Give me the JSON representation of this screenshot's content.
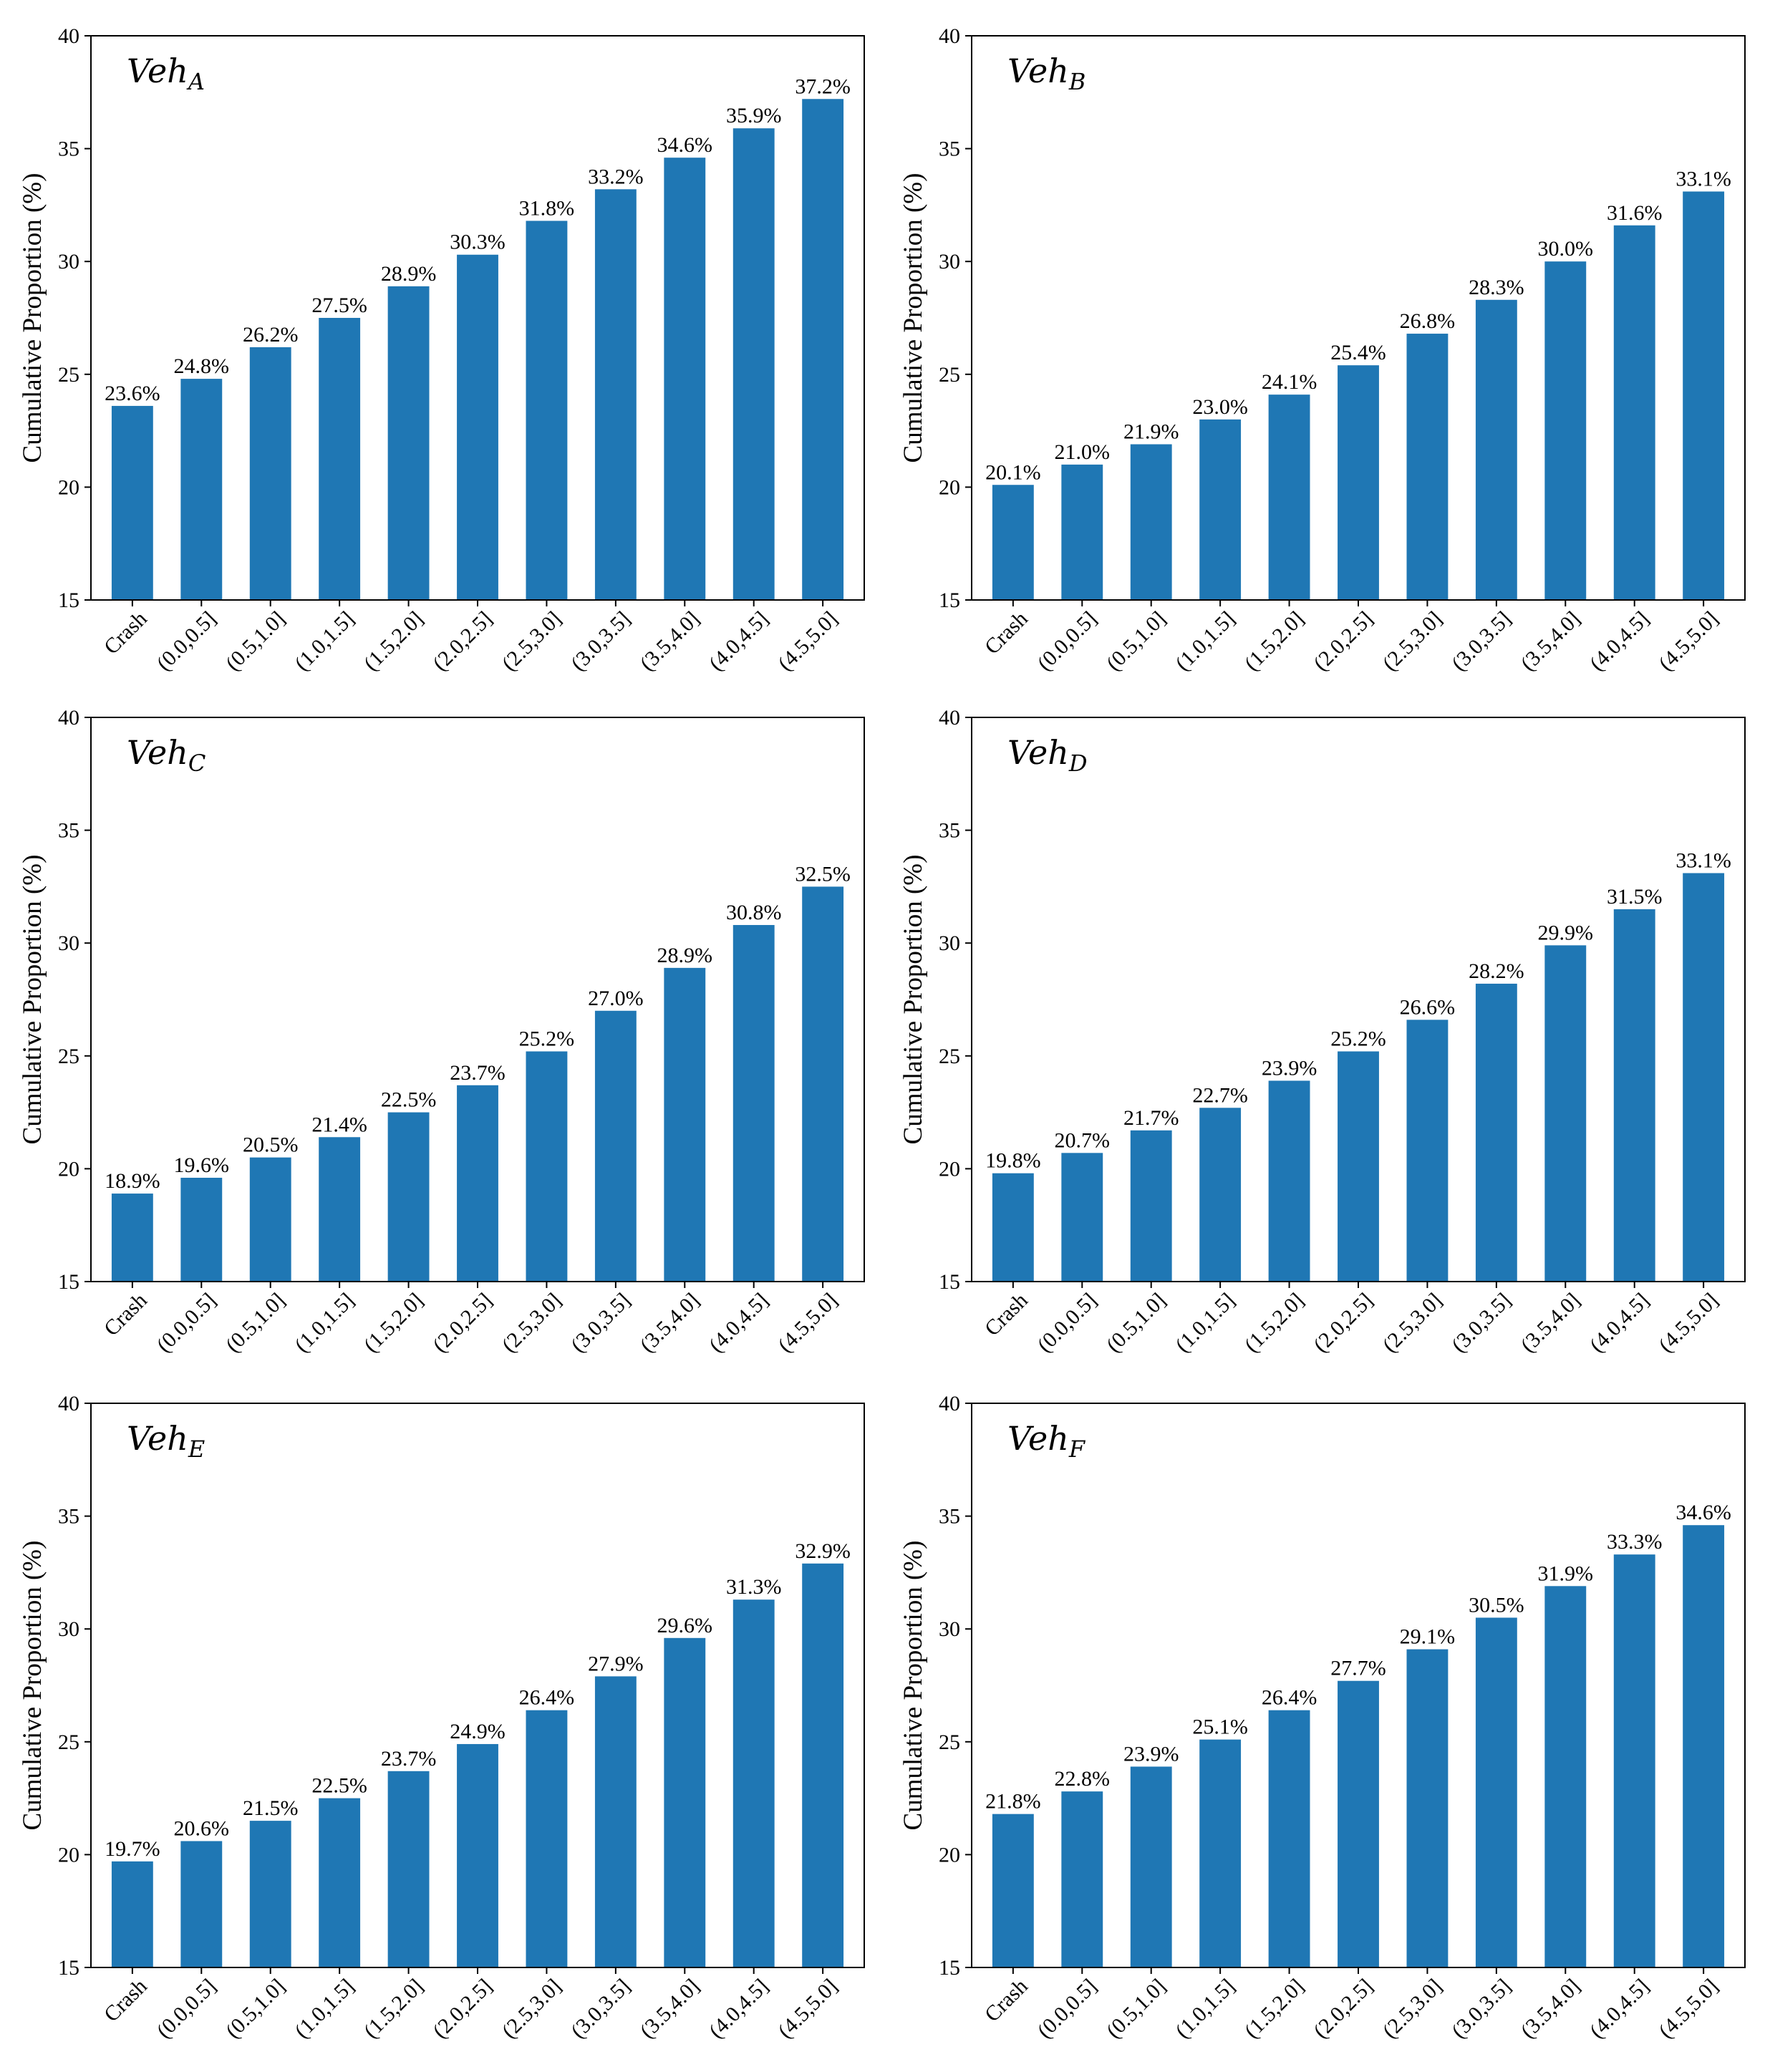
{
  "colors": {
    "bar": "#1f77b4",
    "axis": "#000000",
    "background": "#ffffff"
  },
  "chart_data": [
    {
      "type": "bar",
      "panel": "top-left",
      "title": "Veh",
      "title_sub": "A",
      "ylabel": "Cumulative Proportion (%)",
      "xlabel": "",
      "ylim": [
        15,
        40
      ],
      "yticks": [
        15,
        20,
        25,
        30,
        35,
        40
      ],
      "categories": [
        "Crash",
        "(0.0,0.5]",
        "(0.5,1.0]",
        "(1.0,1.5]",
        "(1.5,2.0]",
        "(2.0,2.5]",
        "(2.5,3.0]",
        "(3.0,3.5]",
        "(3.5,4.0]",
        "(4.0,4.5]",
        "(4.5,5.0]"
      ],
      "values": [
        23.6,
        24.8,
        26.2,
        27.5,
        28.9,
        30.3,
        31.8,
        33.2,
        34.6,
        35.9,
        37.2
      ],
      "data_labels": [
        "23.6%",
        "24.8%",
        "26.2%",
        "27.5%",
        "28.9%",
        "30.3%",
        "31.8%",
        "33.2%",
        "34.6%",
        "35.9%",
        "37.2%"
      ]
    },
    {
      "type": "bar",
      "panel": "top-right",
      "title": "Veh",
      "title_sub": "B",
      "ylabel": "Cumulative Proportion (%)",
      "xlabel": "",
      "ylim": [
        15,
        40
      ],
      "yticks": [
        15,
        20,
        25,
        30,
        35,
        40
      ],
      "categories": [
        "Crash",
        "(0.0,0.5]",
        "(0.5,1.0]",
        "(1.0,1.5]",
        "(1.5,2.0]",
        "(2.0,2.5]",
        "(2.5,3.0]",
        "(3.0,3.5]",
        "(3.5,4.0]",
        "(4.0,4.5]",
        "(4.5,5.0]"
      ],
      "values": [
        20.1,
        21.0,
        21.9,
        23.0,
        24.1,
        25.4,
        26.8,
        28.3,
        30.0,
        31.6,
        33.1
      ],
      "data_labels": [
        "20.1%",
        "21.0%",
        "21.9%",
        "23.0%",
        "24.1%",
        "25.4%",
        "26.8%",
        "28.3%",
        "30.0%",
        "31.6%",
        "33.1%"
      ]
    },
    {
      "type": "bar",
      "panel": "middle-left",
      "title": "Veh",
      "title_sub": "C",
      "ylabel": "Cumulative Proportion (%)",
      "xlabel": "",
      "ylim": [
        15,
        40
      ],
      "yticks": [
        15,
        20,
        25,
        30,
        35,
        40
      ],
      "categories": [
        "Crash",
        "(0.0,0.5]",
        "(0.5,1.0]",
        "(1.0,1.5]",
        "(1.5,2.0]",
        "(2.0,2.5]",
        "(2.5,3.0]",
        "(3.0,3.5]",
        "(3.5,4.0]",
        "(4.0,4.5]",
        "(4.5,5.0]"
      ],
      "values": [
        18.9,
        19.6,
        20.5,
        21.4,
        22.5,
        23.7,
        25.2,
        27.0,
        28.9,
        30.8,
        32.5
      ],
      "data_labels": [
        "18.9%",
        "19.6%",
        "20.5%",
        "21.4%",
        "22.5%",
        "23.7%",
        "25.2%",
        "27.0%",
        "28.9%",
        "30.8%",
        "32.5%"
      ]
    },
    {
      "type": "bar",
      "panel": "middle-right",
      "title": "Veh",
      "title_sub": "D",
      "ylabel": "Cumulative Proportion (%)",
      "xlabel": "",
      "ylim": [
        15,
        40
      ],
      "yticks": [
        15,
        20,
        25,
        30,
        35,
        40
      ],
      "categories": [
        "Crash",
        "(0.0,0.5]",
        "(0.5,1.0]",
        "(1.0,1.5]",
        "(1.5,2.0]",
        "(2.0,2.5]",
        "(2.5,3.0]",
        "(3.0,3.5]",
        "(3.5,4.0]",
        "(4.0,4.5]",
        "(4.5,5.0]"
      ],
      "values": [
        19.8,
        20.7,
        21.7,
        22.7,
        23.9,
        25.2,
        26.6,
        28.2,
        29.9,
        31.5,
        33.1
      ],
      "data_labels": [
        "19.8%",
        "20.7%",
        "21.7%",
        "22.7%",
        "23.9%",
        "25.2%",
        "26.6%",
        "28.2%",
        "29.9%",
        "31.5%",
        "33.1%"
      ]
    },
    {
      "type": "bar",
      "panel": "bottom-left",
      "title": "Veh",
      "title_sub": "E",
      "ylabel": "Cumulative Proportion (%)",
      "xlabel": "",
      "ylim": [
        15,
        40
      ],
      "yticks": [
        15,
        20,
        25,
        30,
        35,
        40
      ],
      "categories": [
        "Crash",
        "(0.0,0.5]",
        "(0.5,1.0]",
        "(1.0,1.5]",
        "(1.5,2.0]",
        "(2.0,2.5]",
        "(2.5,3.0]",
        "(3.0,3.5]",
        "(3.5,4.0]",
        "(4.0,4.5]",
        "(4.5,5.0]"
      ],
      "values": [
        19.7,
        20.6,
        21.5,
        22.5,
        23.7,
        24.9,
        26.4,
        27.9,
        29.6,
        31.3,
        32.9
      ],
      "data_labels": [
        "19.7%",
        "20.6%",
        "21.5%",
        "22.5%",
        "23.7%",
        "24.9%",
        "26.4%",
        "27.9%",
        "29.6%",
        "31.3%",
        "32.9%"
      ]
    },
    {
      "type": "bar",
      "panel": "bottom-right",
      "title": "Veh",
      "title_sub": "F",
      "ylabel": "Cumulative Proportion (%)",
      "xlabel": "",
      "ylim": [
        15,
        40
      ],
      "yticks": [
        15,
        20,
        25,
        30,
        35,
        40
      ],
      "categories": [
        "Crash",
        "(0.0,0.5]",
        "(0.5,1.0]",
        "(1.0,1.5]",
        "(1.5,2.0]",
        "(2.0,2.5]",
        "(2.5,3.0]",
        "(3.0,3.5]",
        "(3.5,4.0]",
        "(4.0,4.5]",
        "(4.5,5.0]"
      ],
      "values": [
        21.8,
        22.8,
        23.9,
        25.1,
        26.4,
        27.7,
        29.1,
        30.5,
        31.9,
        33.3,
        34.6
      ],
      "data_labels": [
        "21.8%",
        "22.8%",
        "23.9%",
        "25.1%",
        "26.4%",
        "27.7%",
        "29.1%",
        "30.5%",
        "31.9%",
        "33.3%",
        "34.6%"
      ]
    }
  ]
}
